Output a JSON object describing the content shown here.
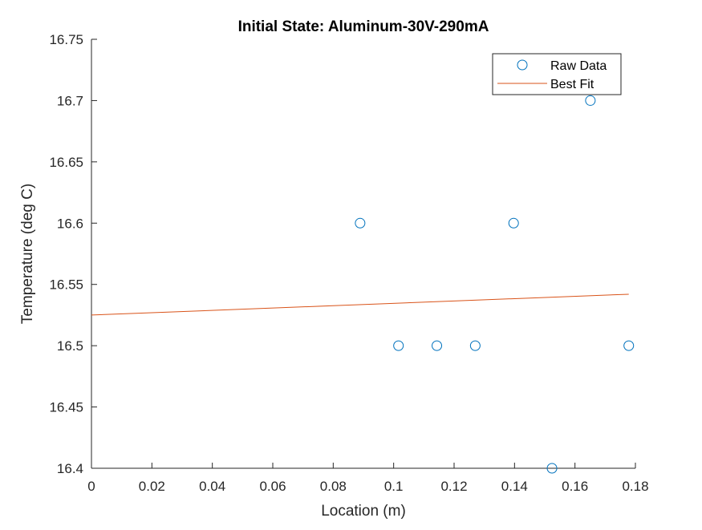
{
  "chart_data": {
    "type": "scatter",
    "title": "Initial State: Aluminum-30V-290mA",
    "xlabel": "Location (m)",
    "ylabel": "Temperature (deg C)",
    "xlim": [
      0,
      0.18
    ],
    "ylim": [
      16.4,
      16.75
    ],
    "xticks": [
      "0",
      "0.02",
      "0.04",
      "0.06",
      "0.08",
      "0.1",
      "0.12",
      "0.14",
      "0.16",
      "0.18"
    ],
    "yticks": [
      "16.4",
      "16.45",
      "16.5",
      "16.55",
      "16.6",
      "16.65",
      "16.7",
      "16.75"
    ],
    "grid": false,
    "legend_position": "top-right",
    "series": [
      {
        "name": "Raw Data",
        "style": "markers",
        "color": "#0072BD",
        "x": [
          0.0889,
          0.1016,
          0.1143,
          0.127,
          0.1397,
          0.1524,
          0.1651,
          0.1778
        ],
        "y": [
          16.6,
          16.5,
          16.5,
          16.5,
          16.6,
          16.4,
          16.7,
          16.5
        ]
      },
      {
        "name": "Best Fit",
        "style": "line",
        "color": "#D95319",
        "x": [
          0,
          0.1778
        ],
        "y": [
          16.525,
          16.542
        ]
      }
    ]
  }
}
